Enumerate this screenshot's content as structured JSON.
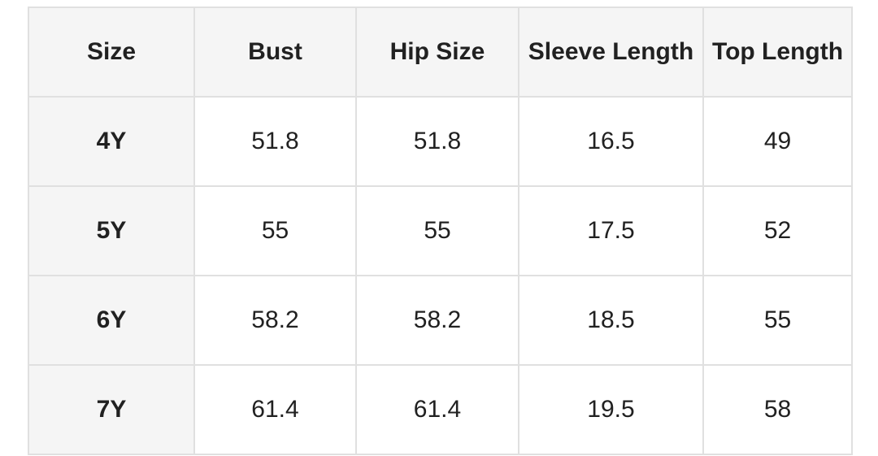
{
  "chart_data": {
    "type": "table",
    "columns": [
      "Size",
      "Bust",
      "Hip Size",
      "Sleeve Length",
      "Top Length"
    ],
    "rows": [
      [
        "4Y",
        "51.8",
        "51.8",
        "16.5",
        "49"
      ],
      [
        "5Y",
        "55",
        "55",
        "17.5",
        "52"
      ],
      [
        "6Y",
        "58.2",
        "58.2",
        "18.5",
        "55"
      ],
      [
        "7Y",
        "61.4",
        "61.4",
        "19.5",
        "58"
      ]
    ]
  },
  "colors": {
    "page_bg": "#ffffff",
    "header_bg": "#f5f5f5",
    "row_label_bg": "#f5f5f5",
    "cell_bg": "#ffffff",
    "border": "#e0e0e0",
    "text": "#212121"
  }
}
